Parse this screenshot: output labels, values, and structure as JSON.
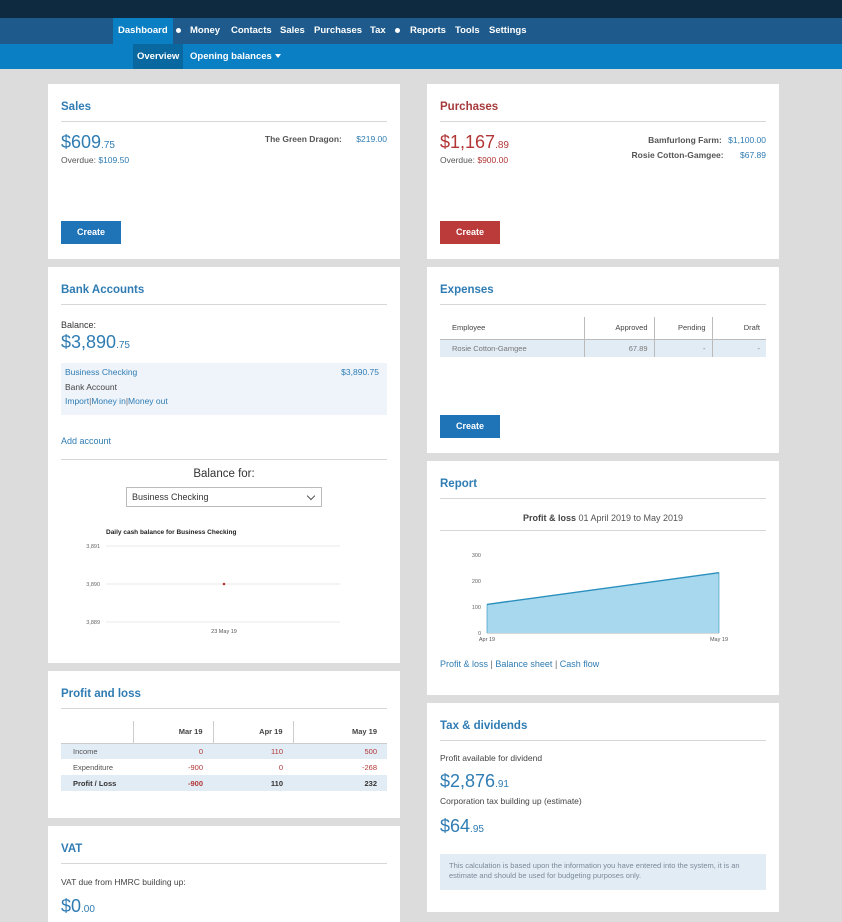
{
  "nav": {
    "items": [
      "Dashboard",
      "Money",
      "Contacts",
      "Sales",
      "Purchases",
      "Tax",
      "Reports",
      "Tools",
      "Settings"
    ],
    "active": "Dashboard"
  },
  "subnav": {
    "items": [
      "Overview",
      "Opening balances"
    ]
  },
  "sales": {
    "title": "Sales",
    "amount": "$609",
    "cents": ".75",
    "overdue_label": "Overdue:",
    "overdue_value": "$109.50",
    "contact_name": "The Green Dragon:",
    "contact_value": "$219.00",
    "create_label": "Create"
  },
  "purchases": {
    "title": "Purchases",
    "amount": "$1,167",
    "cents": ".89",
    "overdue_label": "Overdue:",
    "overdue_value": "$900.00",
    "contacts": [
      {
        "name": "Bamfurlong Farm:",
        "value": "$1,100.00"
      },
      {
        "name": "Rosie Cotton-Gamgee:",
        "value": "$67.89"
      }
    ],
    "create_label": "Create"
  },
  "bank": {
    "title": "Bank Accounts",
    "balance_label": "Balance:",
    "amount": "$3,890",
    "cents": ".75",
    "account_name": "Business Checking",
    "account_value": "$3,890.75",
    "account_type": "Bank Account",
    "actions": [
      "Import",
      "Money in",
      "Money out"
    ],
    "add_account": "Add account",
    "balance_for_label": "Balance for:",
    "select_value": "Business Checking"
  },
  "bank_chart": {
    "title": "Daily cash balance for Business Checking",
    "y_ticks": [
      "3,891",
      "3,890",
      "3,889"
    ],
    "x_label": "23 May 19"
  },
  "expenses": {
    "title": "Expenses",
    "columns": [
      "Employee",
      "Approved",
      "Pending",
      "Draft"
    ],
    "row": {
      "employee": "Rosie Cotton-Gamgee",
      "approved": "67.89",
      "pending": "-",
      "draft": "-"
    },
    "create_label": "Create"
  },
  "report": {
    "title": "Report",
    "subtitle_bold": "Profit & loss",
    "subtitle_rest": " 01 April 2019 to May 2019",
    "links": [
      "Profit & loss",
      "Balance sheet",
      "Cash flow"
    ]
  },
  "chart_data": {
    "type": "area",
    "x": [
      "Apr 19",
      "May 19"
    ],
    "values": [
      110,
      232
    ],
    "y_ticks": [
      0,
      100,
      200,
      300
    ],
    "ylim": [
      0,
      300
    ],
    "color": "#a8d8ee",
    "line_color": "#2a8fbd"
  },
  "pl": {
    "title": "Profit and loss",
    "columns": [
      "Mar 19",
      "Apr 19",
      "May 19"
    ],
    "rows": [
      {
        "label": "Income",
        "values": [
          "0",
          "110",
          "500"
        ]
      },
      {
        "label": "Expenditure",
        "values": [
          "-900",
          "0",
          "-268"
        ]
      },
      {
        "label": "Profit / Loss",
        "values": [
          "-900",
          "110",
          "232"
        ]
      }
    ]
  },
  "tax": {
    "title": "Tax & dividends",
    "profit_label": "Profit available for dividend",
    "profit_amount": "$2,876",
    "profit_cents": ".91",
    "corp_label": "Corporation tax building up (estimate)",
    "corp_amount": "$64",
    "corp_cents": ".95",
    "note": "This calculation is based upon the information you have entered into the system, it is an estimate and should be used for budgeting purposes only."
  },
  "vat": {
    "title": "VAT",
    "label": "VAT due from HMRC building up:",
    "amount": "$0",
    "cents": ".00"
  }
}
